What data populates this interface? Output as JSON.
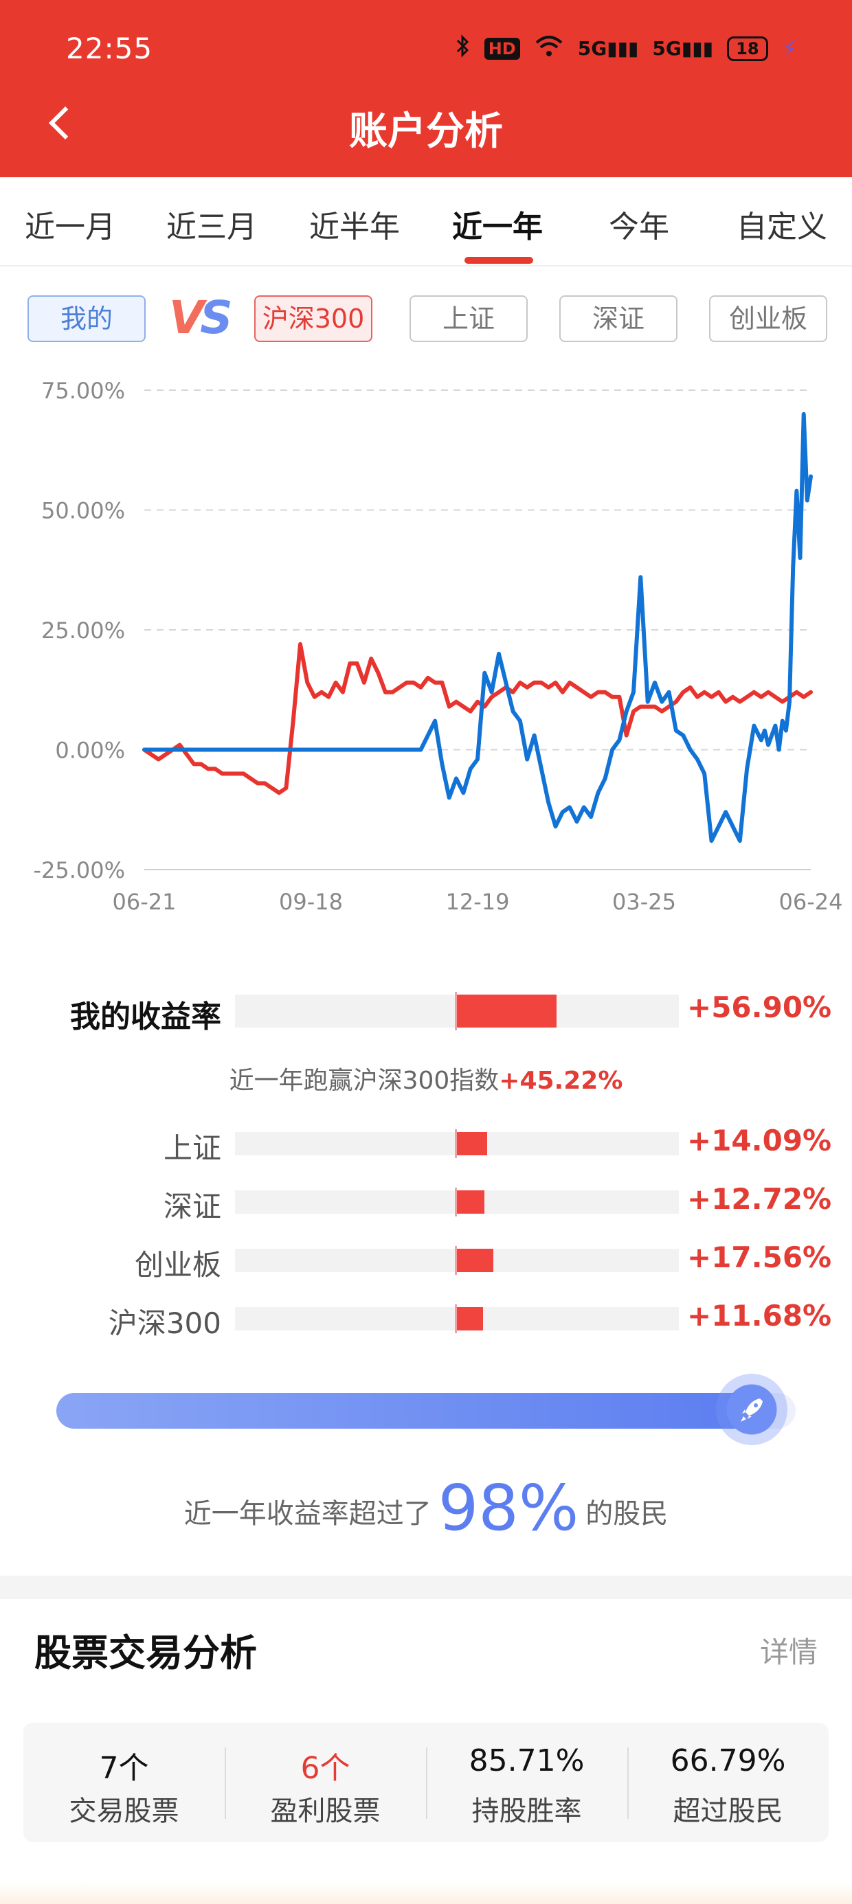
{
  "status_bar": {
    "time": "22:55",
    "icons": [
      "bluetooth-icon",
      "hd-icon",
      "wifi-icon",
      "signal-5g-icon",
      "signal-5g-icon",
      "battery-icon",
      "charging-icon"
    ],
    "hd_label": "HD",
    "net_label_1": "5G",
    "net_label_2": "5G",
    "battery": "18"
  },
  "header": {
    "title": "账户分析"
  },
  "tabs": [
    {
      "label": "近一月"
    },
    {
      "label": "近三月"
    },
    {
      "label": "近半年"
    },
    {
      "label": "近一年",
      "active": true
    },
    {
      "label": "今年"
    },
    {
      "label": "自定义"
    }
  ],
  "compare": {
    "mine": "我的",
    "vs_v": "V",
    "vs_s": "S",
    "hs300": "沪深300",
    "sh": "上证",
    "sz": "深证",
    "cyb": "创业板"
  },
  "chart_data": {
    "type": "line",
    "y_ticks": [
      "75.00%",
      "50.00%",
      "25.00%",
      "0.00%",
      "-25.00%"
    ],
    "ylim": [
      -25,
      75
    ],
    "x_ticks": [
      "06-21",
      "09-18",
      "12-19",
      "03-25",
      "06-24"
    ],
    "grid": "dashed horizontal",
    "colors": {
      "mine": "#1273d6",
      "hs300": "#e8342f"
    },
    "series": [
      {
        "key": "mine",
        "x": [
          0,
          20,
          40,
          50,
          60,
          80,
          90,
          100,
          110,
          120,
          130,
          140,
          150,
          160,
          175,
          190,
          200,
          210,
          220,
          230,
          240,
          250,
          260,
          270,
          280,
          290,
          300,
          310,
          320,
          330,
          340,
          350,
          360,
          370,
          380,
          390,
          400,
          410,
          420,
          430,
          440,
          450,
          460,
          470,
          480,
          490,
          500,
          510,
          520,
          530,
          540,
          550,
          560,
          570,
          580,
          590,
          600,
          610,
          620,
          630,
          640,
          650,
          660,
          670,
          680,
          690,
          700,
          710,
          720,
          730,
          740,
          750,
          760,
          770,
          780,
          790,
          800,
          810,
          820,
          830,
          840,
          850,
          860,
          870,
          875,
          880,
          885,
          890,
          895,
          900,
          905,
          910,
          915,
          920,
          925,
          930,
          935,
          940
        ],
        "y": [
          0,
          0,
          0,
          0,
          0,
          0,
          0,
          0,
          0,
          0,
          0,
          0,
          0,
          0,
          0,
          0,
          0,
          0,
          0,
          0,
          0,
          0,
          0,
          0,
          0,
          0,
          0,
          0,
          0,
          0,
          0,
          0,
          0,
          0,
          0,
          0,
          3,
          6,
          -3,
          -10,
          -6,
          -9,
          -4,
          -2,
          16,
          12,
          20,
          14,
          8,
          6,
          -2,
          3,
          -4,
          -11,
          -16,
          -13,
          -12,
          -15,
          -12,
          -14,
          -9,
          -6,
          0,
          2,
          8,
          12,
          36,
          10,
          14,
          10,
          12,
          4,
          3,
          0,
          -2,
          -5,
          -19,
          -16,
          -13,
          -16,
          -19,
          -4,
          5,
          2,
          4,
          1,
          3,
          5,
          0,
          6,
          4,
          10,
          38,
          54,
          40,
          70,
          52,
          57
        ]
      },
      {
        "key": "hs300",
        "x": [
          0,
          10,
          20,
          30,
          40,
          50,
          60,
          70,
          80,
          90,
          100,
          110,
          120,
          130,
          140,
          150,
          160,
          170,
          180,
          190,
          200,
          210,
          220,
          230,
          240,
          250,
          260,
          270,
          280,
          290,
          300,
          310,
          320,
          330,
          340,
          350,
          360,
          370,
          380,
          390,
          400,
          410,
          420,
          430,
          440,
          450,
          460,
          470,
          480,
          490,
          500,
          510,
          520,
          530,
          540,
          550,
          560,
          570,
          580,
          590,
          600,
          610,
          620,
          630,
          640,
          650,
          660,
          670,
          680,
          690,
          700,
          710,
          720,
          730,
          740,
          750,
          760,
          770,
          780,
          790,
          800,
          810,
          820,
          830,
          840,
          850,
          860,
          870,
          880,
          890,
          900,
          910,
          920,
          930,
          940
        ],
        "y": [
          0,
          -1,
          -2,
          -1,
          0,
          1,
          -1,
          -3,
          -3,
          -4,
          -4,
          -5,
          -5,
          -5,
          -5,
          -6,
          -7,
          -7,
          -8,
          -9,
          -8,
          6,
          22,
          14,
          11,
          12,
          11,
          14,
          12,
          18,
          18,
          14,
          19,
          16,
          12,
          12,
          13,
          14,
          14,
          13,
          15,
          14,
          14,
          9,
          10,
          9,
          8,
          10,
          9,
          11,
          12,
          13,
          12,
          14,
          13,
          14,
          14,
          13,
          14,
          12,
          14,
          13,
          12,
          11,
          12,
          12,
          11,
          11,
          3,
          8,
          9,
          9,
          9,
          8,
          9,
          10,
          12,
          13,
          11,
          12,
          11,
          12,
          10,
          11,
          10,
          11,
          12,
          11,
          12,
          11,
          10,
          11,
          12,
          11,
          12
        ]
      }
    ]
  },
  "returns": {
    "mine": {
      "label": "我的收益率",
      "value": "+56.90%",
      "pct": 56.9
    },
    "beat_text": "近一年跑赢沪深300指数",
    "beat_value": "+45.22%",
    "indices": [
      {
        "label": "上证",
        "value": "+14.09%",
        "pct": 14.09
      },
      {
        "label": "深证",
        "value": "+12.72%",
        "pct": 12.72
      },
      {
        "label": "创业板",
        "value": "+17.56%",
        "pct": 17.56
      },
      {
        "label": "沪深300",
        "value": "+11.68%",
        "pct": 11.68
      }
    ]
  },
  "rank": {
    "prefix": "近一年收益率超过了",
    "percent": "98%",
    "percent_value": 98,
    "suffix": "的股民"
  },
  "trade_analysis": {
    "title": "股票交易分析",
    "more": "详情",
    "stats": [
      {
        "value": "7个",
        "label": "交易股票",
        "red": false
      },
      {
        "value": "6个",
        "label": "盈利股票",
        "red": true
      },
      {
        "value": "85.71%",
        "label": "持股胜率",
        "red": false
      },
      {
        "value": "66.79%",
        "label": "超过股民",
        "red": false
      }
    ]
  }
}
